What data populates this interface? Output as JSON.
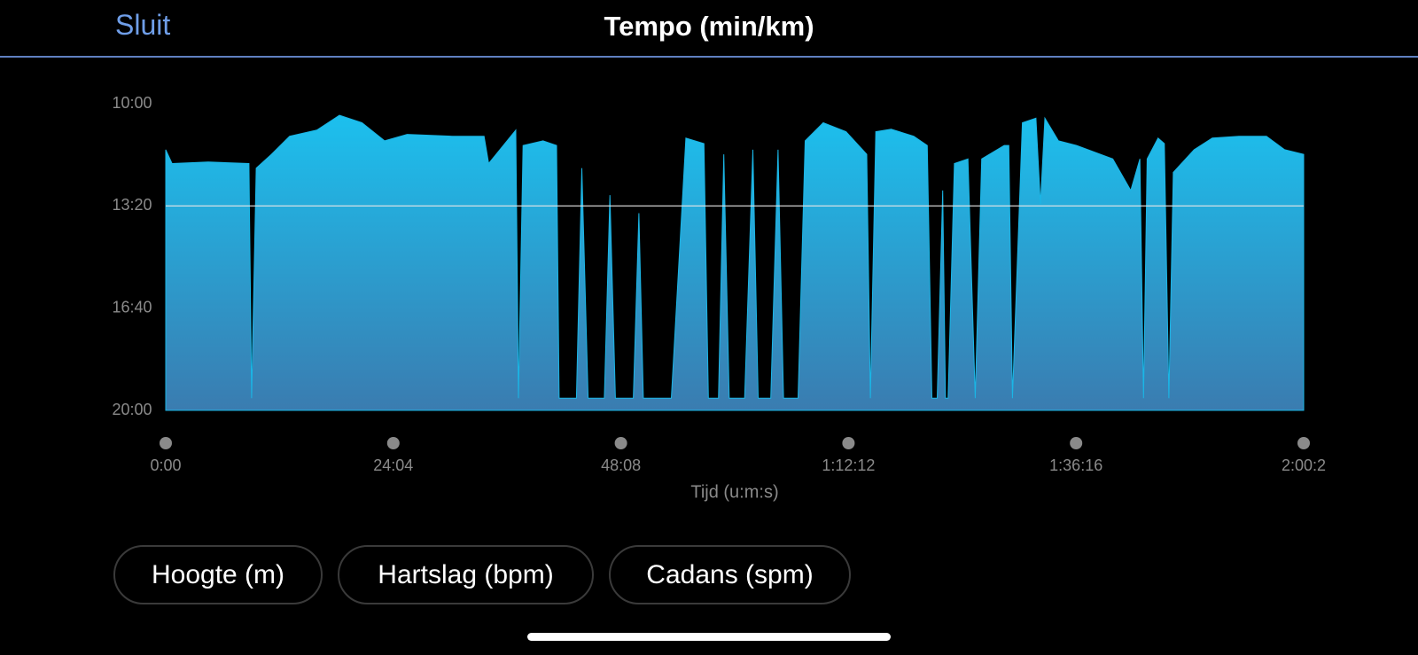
{
  "header": {
    "close": "Sluit",
    "title": "Tempo (min/km)"
  },
  "chart_data": {
    "type": "area",
    "x_label": "Tijd (u:m:s)",
    "x": [
      0,
      40,
      270,
      528,
      545,
      574,
      671,
      786,
      959,
      1102,
      1245,
      1389,
      1532,
      1819,
      2020,
      2049,
      2221,
      2238,
      2267,
      2394,
      2480,
      2496,
      2606,
      2640,
      2680,
      2783,
      2818,
      2853,
      2967,
      3002,
      3030,
      3208,
      3300,
      3415,
      3443,
      3507,
      3541,
      3575,
      3673,
      3725,
      3759,
      3839,
      3885,
      3920,
      4012,
      4057,
      4172,
      4316,
      4448,
      4471,
      4505,
      4603,
      4746,
      4832,
      4861,
      4895,
      4930,
      4947,
      4964,
      5004,
      5090,
      5136,
      5177,
      5320,
      5349,
      5372,
      5435,
      5521,
      5550,
      5578,
      5664,
      5779,
      6009,
      6123,
      6181,
      6204,
      6227,
      6296,
      6336,
      6365,
      6393,
      6525,
      6640,
      6812,
      6984,
      7099,
      7220
    ],
    "series": [
      {
        "color": "#1ab6e6",
        "values": [
          11.5,
          11.95,
          11.9,
          11.95,
          19.6,
          12.1,
          11.65,
          11.06,
          10.86,
          10.38,
          10.62,
          11.21,
          11.0,
          11.06,
          11.06,
          11.95,
          10.86,
          19.6,
          11.36,
          11.21,
          11.36,
          19.6,
          19.6,
          12.1,
          19.6,
          19.6,
          12.98,
          19.6,
          19.6,
          13.57,
          19.6,
          19.6,
          11.12,
          11.3,
          19.6,
          19.6,
          11.65,
          19.6,
          19.6,
          11.5,
          19.6,
          19.6,
          11.5,
          19.6,
          19.6,
          11.21,
          10.62,
          10.91,
          11.65,
          19.6,
          10.91,
          10.83,
          11.06,
          11.36,
          19.6,
          19.6,
          12.83,
          19.6,
          19.6,
          11.95,
          11.8,
          19.6,
          11.8,
          11.36,
          11.36,
          19.6,
          10.62,
          10.47,
          13.27,
          10.47,
          11.21,
          11.36,
          11.8,
          12.83,
          11.8,
          19.6,
          11.8,
          11.12,
          11.3,
          19.6,
          12.24,
          11.5,
          11.12,
          11.06,
          11.06,
          11.5,
          11.65
        ]
      }
    ],
    "xlim": [
      0,
      7220
    ],
    "xticks": [
      {
        "value": 0,
        "label": "0:00"
      },
      {
        "value": 1444,
        "label": "24:04"
      },
      {
        "value": 2888,
        "label": "48:08"
      },
      {
        "value": 4332,
        "label": "1:12:12"
      },
      {
        "value": 5776,
        "label": "1:36:16"
      },
      {
        "value": 7220,
        "label": "2:00:2"
      }
    ],
    "ylim": [
      20,
      10
    ],
    "yticks": [
      {
        "value": 10,
        "label": "10:00"
      },
      {
        "value": 13.333,
        "label": "13:20"
      },
      {
        "value": 16.667,
        "label": "16:40"
      },
      {
        "value": 20,
        "label": "20:00"
      }
    ],
    "reference_line": 13.333
  },
  "buttons": [
    "Hoogte (m)",
    "Hartslag (bpm)",
    "Cadans (spm)"
  ]
}
